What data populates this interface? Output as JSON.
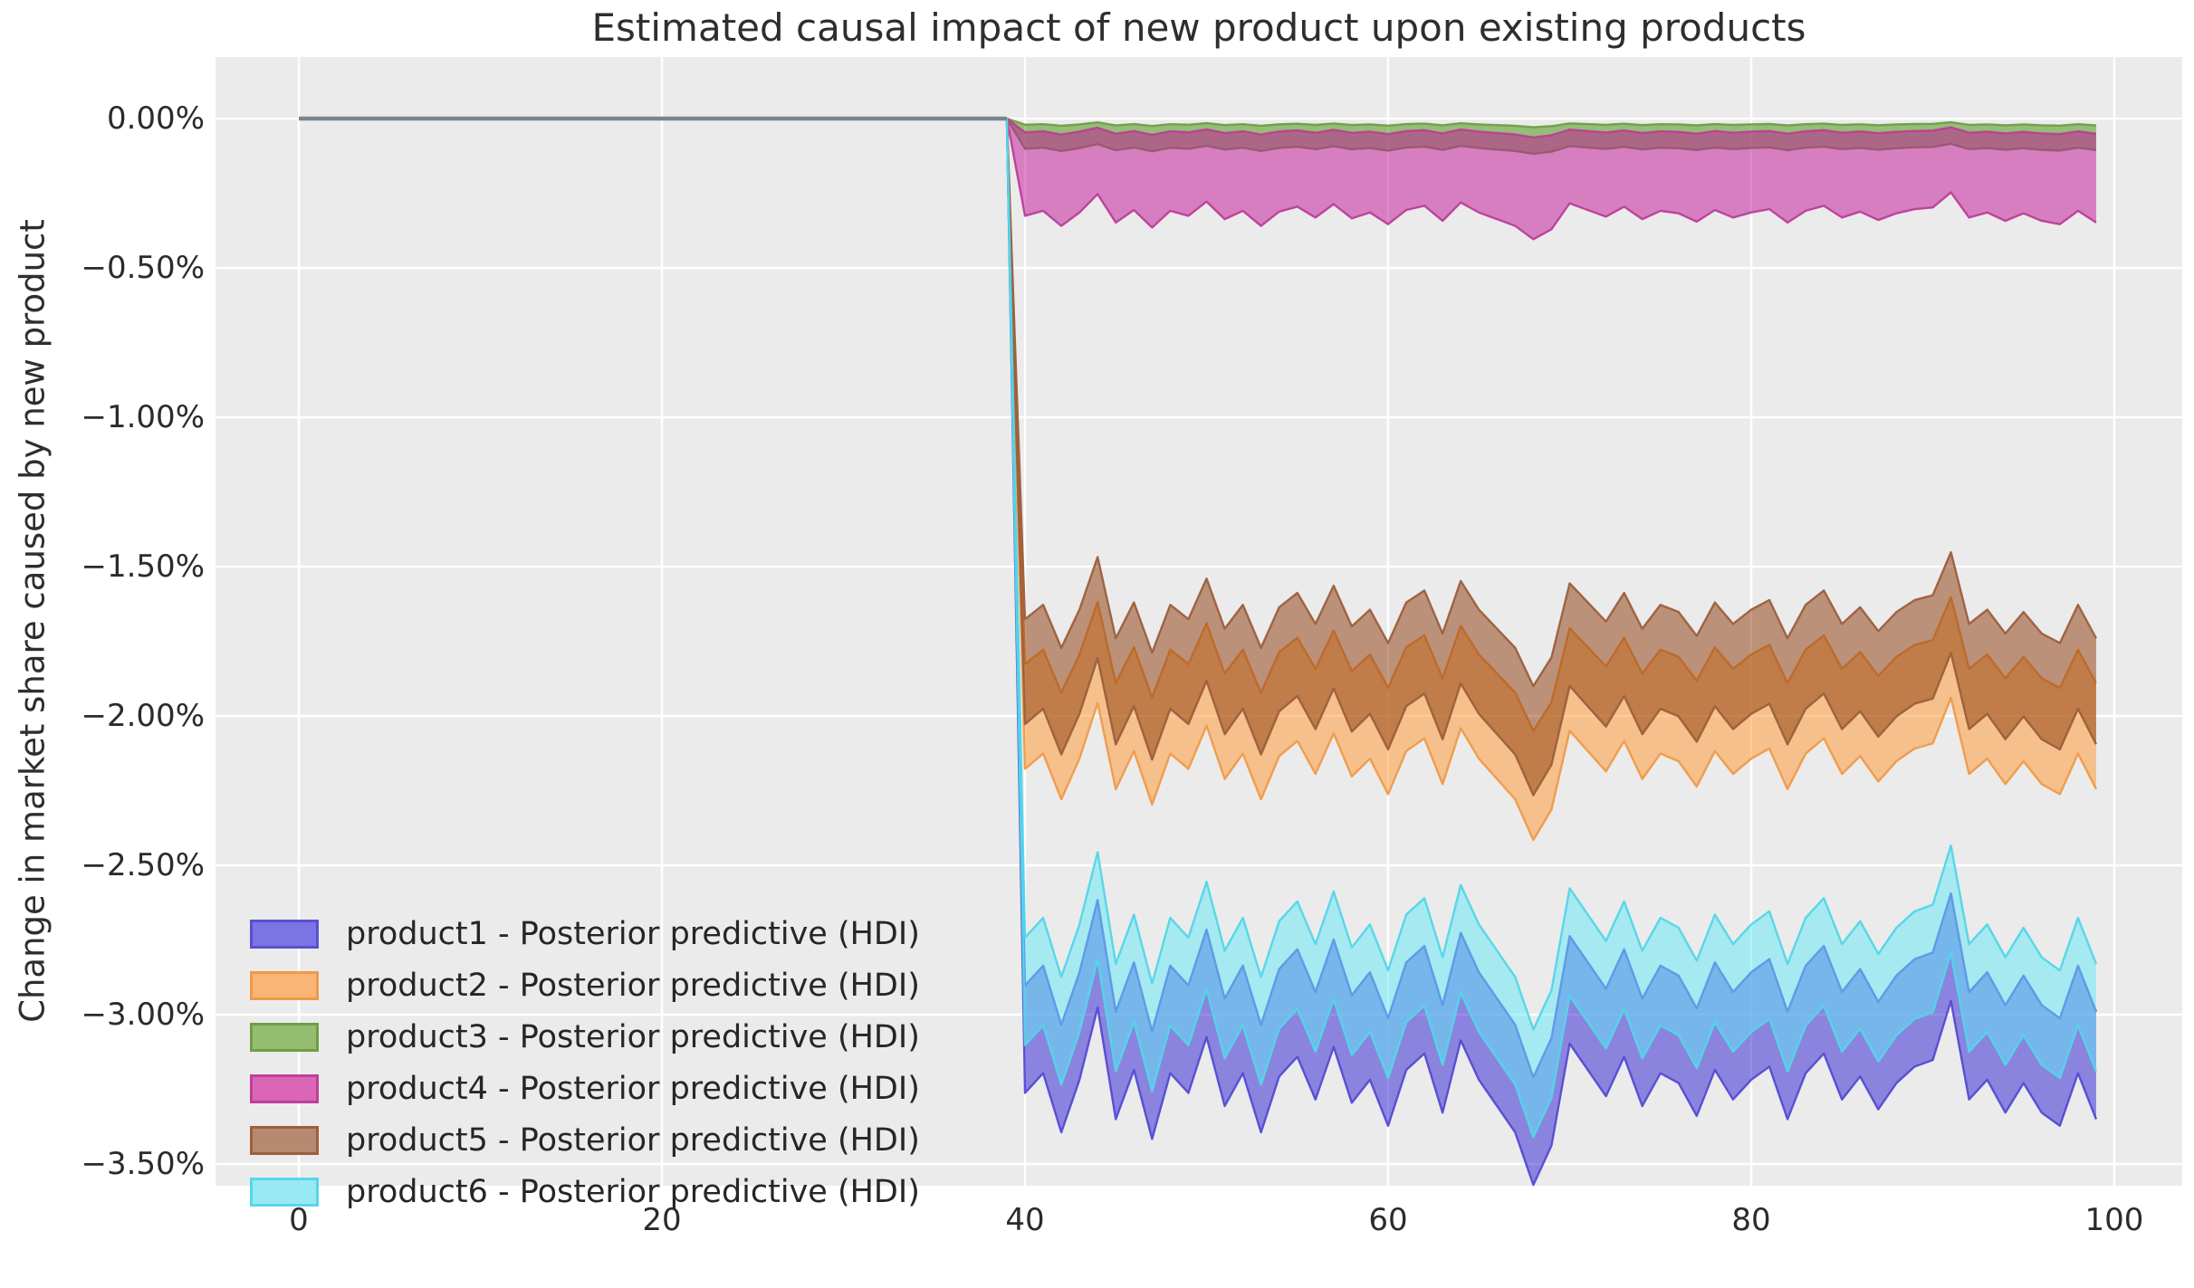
{
  "chart_data": {
    "type": "area",
    "title": "Estimated causal impact of new product upon existing products",
    "ylabel": "Change in market share caused by new product",
    "xlabel": "",
    "plot_bg": "#ebebeb",
    "gridline_color": "#ffffff",
    "grid": true,
    "text_color": "#2b2b2b",
    "x_ticks": [
      0,
      20,
      40,
      60,
      80,
      100
    ],
    "y_tick_labels": [
      "0.00%",
      "−0.50%",
      "−1.00%",
      "−1.50%",
      "−2.00%",
      "−2.50%",
      "−3.00%",
      "−3.50%"
    ],
    "y_tick_values": [
      0,
      -0.5,
      -1.0,
      -1.5,
      -2.0,
      -2.5,
      -3.0,
      -3.5
    ],
    "xlim": [
      -4.5,
      103.5
    ],
    "ylim": [
      -3.57,
      0.21
    ],
    "legend_position": "lower left",
    "pre_period": {
      "t_start": 0,
      "t_end": 39,
      "value_pct": 0,
      "line_color": "#76878c"
    },
    "treatment_time": 39,
    "post_t_start": 40,
    "post_t_end": 99,
    "fill_opacity": 0.5,
    "base_wiggle_pct": [
      -0.02,
      0.04,
      -0.14,
      0.02,
      0.24,
      -0.1,
      0.05,
      -0.16,
      0.04,
      -0.02,
      0.15,
      -0.06,
      0.04,
      -0.14,
      0.03,
      0.09,
      -0.04,
      0.12,
      -0.05,
      0.02,
      -0.12,
      0.05,
      0.1,
      -0.08,
      0.14,
      0.02,
      -0.06,
      -0.14,
      -0.3,
      -0.18,
      0.13,
      0.05,
      -0.03,
      0.09,
      -0.06,
      0.04,
      0.01,
      -0.09,
      0.05,
      -0.04,
      0.02,
      0.06,
      -0.1,
      0.04,
      0.1,
      -0.04,
      0.03,
      -0.07,
      0.01,
      0.06,
      0.08,
      0.26,
      -0.04,
      0.02,
      -0.08,
      0.01,
      -0.08,
      -0.12,
      0.04,
      -0.1
    ],
    "series": [
      {
        "name": "product1 - Posterior predictive (HDI)",
        "fill": "#2B1DD1",
        "edge": "#544AD4",
        "swatch_fill": "#7B74E4",
        "swatch_edge": "#5A50CF",
        "hdi_upper_center_pct": -2.88,
        "hdi_lower_center_pct": -3.24,
        "wiggle_scale_upper": 1.1,
        "wiggle_scale_lower": 1.1
      },
      {
        "name": "product2 - Posterior predictive (HDI)",
        "fill": "#FF952B",
        "edge": "#EF9A49",
        "swatch_fill": "#F8B575",
        "swatch_edge": "#EE9A49",
        "hdi_upper_center_pct": -1.81,
        "hdi_lower_center_pct": -2.16,
        "wiggle_scale_upper": 0.8,
        "wiggle_scale_lower": 0.85
      },
      {
        "name": "product3 - Posterior predictive (HDI)",
        "fill": "#3D8F00",
        "edge": "#6F9E46",
        "swatch_fill": "#94BD70",
        "swatch_edge": "#6F9E46",
        "hdi_upper_center_pct": -0.02,
        "hdi_lower_center_pct": -0.1,
        "wiggle_scale_upper": 0.03,
        "wiggle_scale_lower": 0.06
      },
      {
        "name": "product4 - Posterior predictive (HDI)",
        "fill": "#C31197",
        "edge": "#BC3E98",
        "swatch_fill": "#D967B5",
        "swatch_edge": "#BF3F9A",
        "hdi_upper_center_pct": -0.045,
        "hdi_lower_center_pct": -0.32,
        "wiggle_scale_upper": 0.06,
        "wiggle_scale_lower": 0.28
      },
      {
        "name": "product5 - Posterior predictive (HDI)",
        "fill": "#8B3707",
        "edge": "#9C5F3D",
        "swatch_fill": "#B58A70",
        "swatch_edge": "#9C5F3D",
        "hdi_upper_center_pct": -1.66,
        "hdi_lower_center_pct": -2.01,
        "wiggle_scale_upper": 0.8,
        "wiggle_scale_lower": 0.85
      },
      {
        "name": "product6 - Posterior predictive (HDI)",
        "fill": "#61E7F7",
        "edge": "#52D6E8",
        "swatch_fill": "#97E9F2",
        "swatch_edge": "#56D7E8",
        "hdi_upper_center_pct": -2.72,
        "hdi_lower_center_pct": -3.08,
        "wiggle_scale_upper": 1.1,
        "wiggle_scale_lower": 1.1
      }
    ]
  }
}
